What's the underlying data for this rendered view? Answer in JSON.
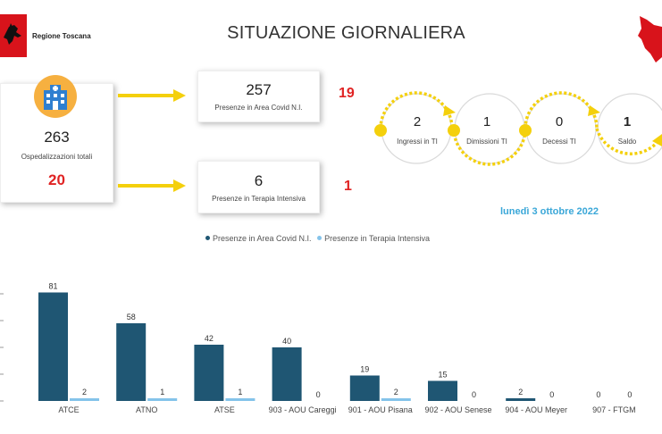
{
  "header": {
    "region_name": "Regione Toscana",
    "title": "SITUAZIONE GIORNALIERA"
  },
  "totals": {
    "hospitalized_value": "263",
    "hospitalized_label": "Ospedalizzazioni totali",
    "hospitalized_delta": "20",
    "covid_area_value": "257",
    "covid_area_label": "Presenze in Area Covid N.I.",
    "covid_area_delta": "19",
    "icu_value": "6",
    "icu_label": "Presenze in Terapia Intensiva",
    "icu_delta": "1"
  },
  "flow": [
    {
      "value": "2",
      "label": "Ingressi in TI"
    },
    {
      "value": "1",
      "label": "Dimissioni TI"
    },
    {
      "value": "0",
      "label": "Decessi TI"
    },
    {
      "value": "1",
      "label": "Saldo"
    }
  ],
  "date_label": "lunedì 3 ottobre 2022",
  "colors": {
    "covid": "#1f5673",
    "icu": "#84c3ea",
    "accent_red": "#e02323",
    "arrow_yellow": "#f4d00c",
    "date_blue": "#3aa7d8"
  },
  "chart_data": {
    "type": "bar",
    "categories": [
      "ATCE",
      "ATNO",
      "ATSE",
      "903 - AOU Careggi",
      "901 - AOU Pisana",
      "902 - AOU Senese",
      "904 - AOU Meyer",
      "907 - FTGM"
    ],
    "series": [
      {
        "name": "Presenze in Area Covid N.I.",
        "values": [
          81,
          58,
          42,
          40,
          19,
          15,
          2,
          0
        ]
      },
      {
        "name": "Presenze in Terapia Intensiva",
        "values": [
          2,
          1,
          1,
          0,
          2,
          0,
          0,
          0
        ]
      }
    ],
    "ylim": [
      0,
      100
    ],
    "grid": false,
    "legend": "top-center"
  }
}
